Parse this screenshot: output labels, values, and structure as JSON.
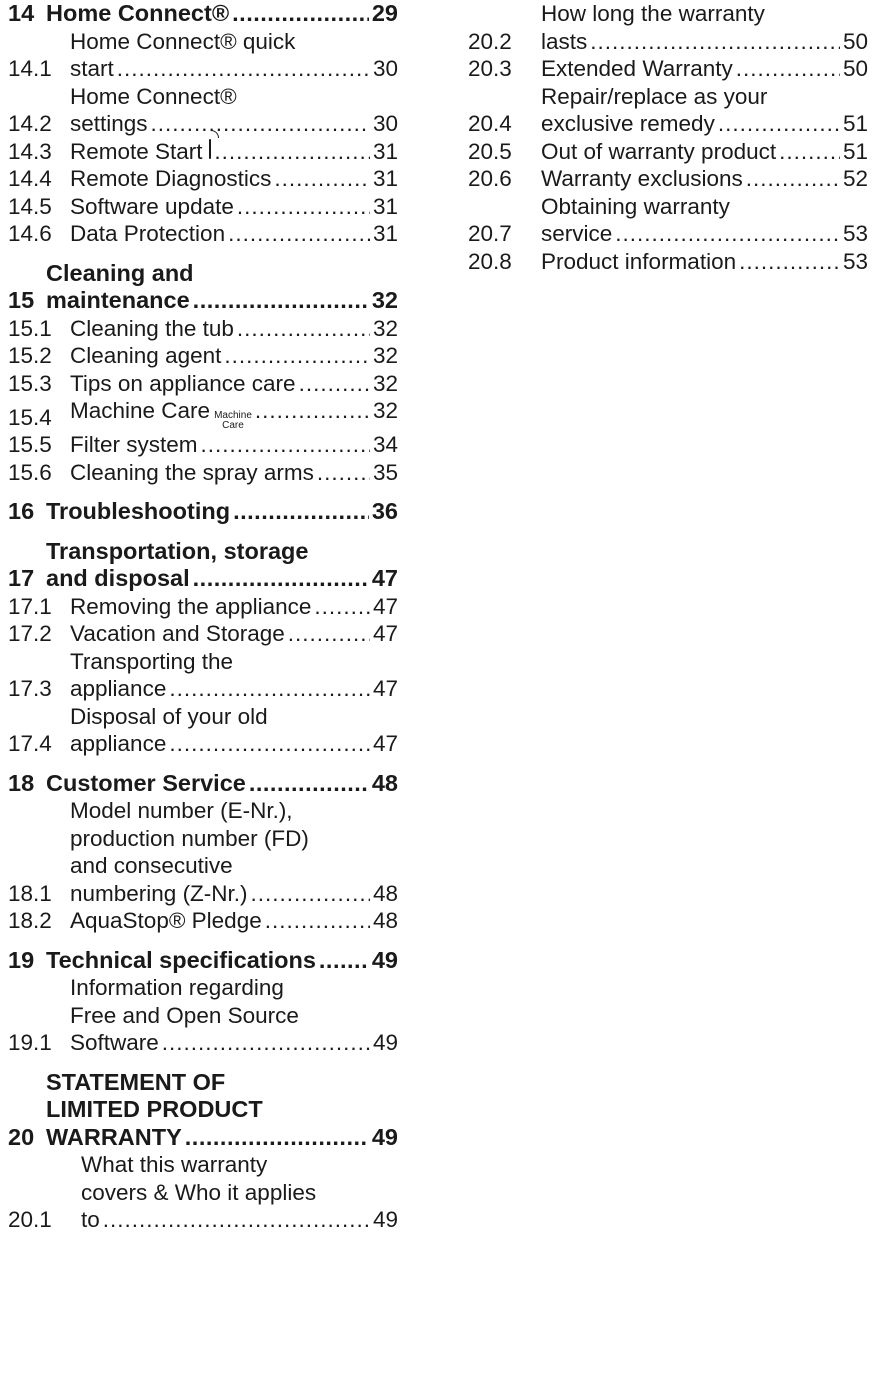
{
  "toc_left": [
    {
      "type": "main",
      "num": "14",
      "lines": [
        "Home Connect®"
      ],
      "page": "29"
    },
    {
      "type": "sub",
      "num": "14.1",
      "lines": [
        "Home Connect® quick",
        "start"
      ],
      "page": "30"
    },
    {
      "type": "sub",
      "num": "14.2",
      "lines": [
        "Home Connect®",
        "settings"
      ],
      "page": "30"
    },
    {
      "type": "sub",
      "num": "14.3",
      "lines": [
        "Remote Start"
      ],
      "page": "31",
      "icon": "remote-start-icon"
    },
    {
      "type": "sub",
      "num": "14.4",
      "lines": [
        "Remote Diagnostics"
      ],
      "page": "31"
    },
    {
      "type": "sub",
      "num": "14.5",
      "lines": [
        "Software update"
      ],
      "page": "31"
    },
    {
      "type": "sub",
      "num": "14.6",
      "lines": [
        "Data Protection"
      ],
      "page": "31"
    },
    {
      "type": "main",
      "num": "15",
      "lines": [
        "Cleaning and",
        "maintenance"
      ],
      "page": "32"
    },
    {
      "type": "sub",
      "num": "15.1",
      "lines": [
        "Cleaning the tub"
      ],
      "page": "32"
    },
    {
      "type": "sub",
      "num": "15.2",
      "lines": [
        "Cleaning agent"
      ],
      "page": "32"
    },
    {
      "type": "sub",
      "num": "15.3",
      "lines": [
        "Tips on appliance care"
      ],
      "page": "32"
    },
    {
      "type": "sub",
      "num": "15.4",
      "lines": [
        "Machine Care"
      ],
      "page": "32",
      "icon": "machine-care-icon",
      "icon_text": [
        "Machine",
        "Care"
      ]
    },
    {
      "type": "sub",
      "num": "15.5",
      "lines": [
        "Filter system"
      ],
      "page": "34"
    },
    {
      "type": "sub",
      "num": "15.6",
      "lines": [
        "Cleaning the spray arms"
      ],
      "page": "35"
    },
    {
      "type": "main",
      "num": "16",
      "lines": [
        "Troubleshooting"
      ],
      "page": "36"
    },
    {
      "type": "main",
      "num": "17",
      "lines": [
        "Transportation, storage",
        "and disposal"
      ],
      "page": "47"
    },
    {
      "type": "sub",
      "num": "17.1",
      "lines": [
        "Removing the appliance"
      ],
      "page": "47"
    },
    {
      "type": "sub",
      "num": "17.2",
      "lines": [
        "Vacation and Storage"
      ],
      "page": "47"
    },
    {
      "type": "sub",
      "num": "17.3",
      "lines": [
        "Transporting the",
        "appliance"
      ],
      "page": "47"
    },
    {
      "type": "sub",
      "num": "17.4",
      "lines": [
        "Disposal of your old",
        "appliance"
      ],
      "page": "47"
    },
    {
      "type": "main",
      "num": "18",
      "lines": [
        "Customer Service"
      ],
      "page": "48"
    },
    {
      "type": "sub",
      "num": "18.1",
      "lines": [
        "Model number (E-Nr.),",
        "production number (FD)",
        "and consecutive",
        "numbering (Z-Nr.)"
      ],
      "page": "48"
    },
    {
      "type": "sub",
      "num": "18.2",
      "lines": [
        "AquaStop® Pledge"
      ],
      "page": "48"
    },
    {
      "type": "main",
      "num": "19",
      "lines": [
        "Technical specifications"
      ],
      "page": "49"
    },
    {
      "type": "sub",
      "num": "19.1",
      "lines": [
        "Information regarding",
        "Free and Open Source",
        "Software"
      ],
      "page": "49"
    },
    {
      "type": "main",
      "num": "20",
      "lines": [
        "STATEMENT OF",
        "LIMITED PRODUCT",
        "WARRANTY"
      ],
      "page": "49"
    },
    {
      "type": "sub2",
      "num": "20.1",
      "lines": [
        "What this warranty",
        "covers & Who it applies",
        "to"
      ],
      "page": "49"
    }
  ],
  "toc_right": [
    {
      "type": "sub2",
      "num": "20.2",
      "lines": [
        "How long the warranty",
        "lasts"
      ],
      "page": "50"
    },
    {
      "type": "sub2",
      "num": "20.3",
      "lines": [
        "Extended Warranty"
      ],
      "page": "50"
    },
    {
      "type": "sub2",
      "num": "20.4",
      "lines": [
        "Repair/replace as your",
        "exclusive remedy"
      ],
      "page": "51"
    },
    {
      "type": "sub2",
      "num": "20.5",
      "lines": [
        "Out of warranty product"
      ],
      "page": "51"
    },
    {
      "type": "sub2",
      "num": "20.6",
      "lines": [
        "Warranty exclusions"
      ],
      "page": "52"
    },
    {
      "type": "sub2",
      "num": "20.7",
      "lines": [
        "Obtaining warranty",
        "service"
      ],
      "page": "53"
    },
    {
      "type": "sub2",
      "num": "20.8",
      "lines": [
        "Product information"
      ],
      "page": "53"
    }
  ]
}
